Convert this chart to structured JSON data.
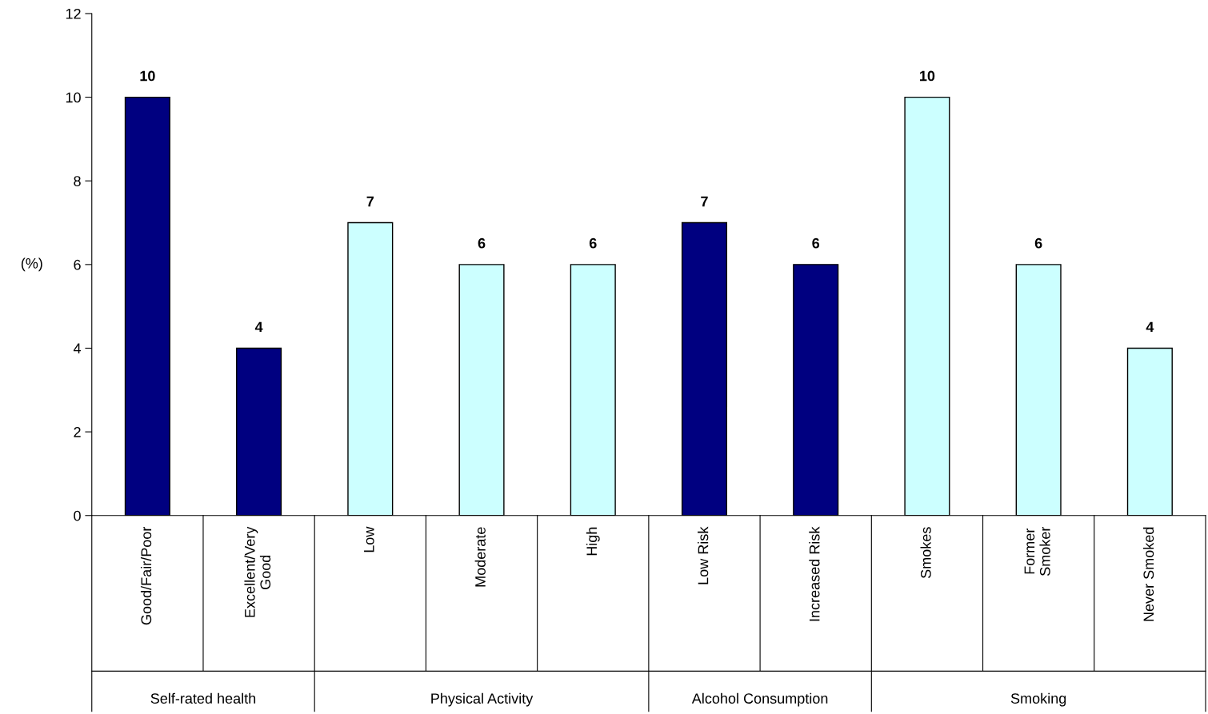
{
  "chart_data": {
    "type": "bar",
    "ylabel": "(%)",
    "categories": [
      "Good/Fair/Poor",
      "Excellent/Very\nGood",
      "Low",
      "Moderate",
      "High",
      "Low Risk",
      "Increased Risk",
      "Smokes",
      "Former\nSmoker",
      "Never Smoked"
    ],
    "values": [
      10,
      4,
      7,
      6,
      6,
      7,
      6,
      10,
      6,
      4
    ],
    "colors": [
      "#000080",
      "#000080",
      "#ccffff",
      "#ccffff",
      "#ccffff",
      "#000080",
      "#000080",
      "#ccffff",
      "#ccffff",
      "#ccffff"
    ],
    "ylim": [
      0,
      12
    ],
    "yticks": [
      0,
      2,
      4,
      6,
      8,
      10,
      12
    ],
    "data_labels": true,
    "grid": false,
    "legend": false,
    "annotations": [
      "Self-rated health",
      "Physical Activity",
      "Alcohol Consumption",
      "Smoking"
    ]
  }
}
